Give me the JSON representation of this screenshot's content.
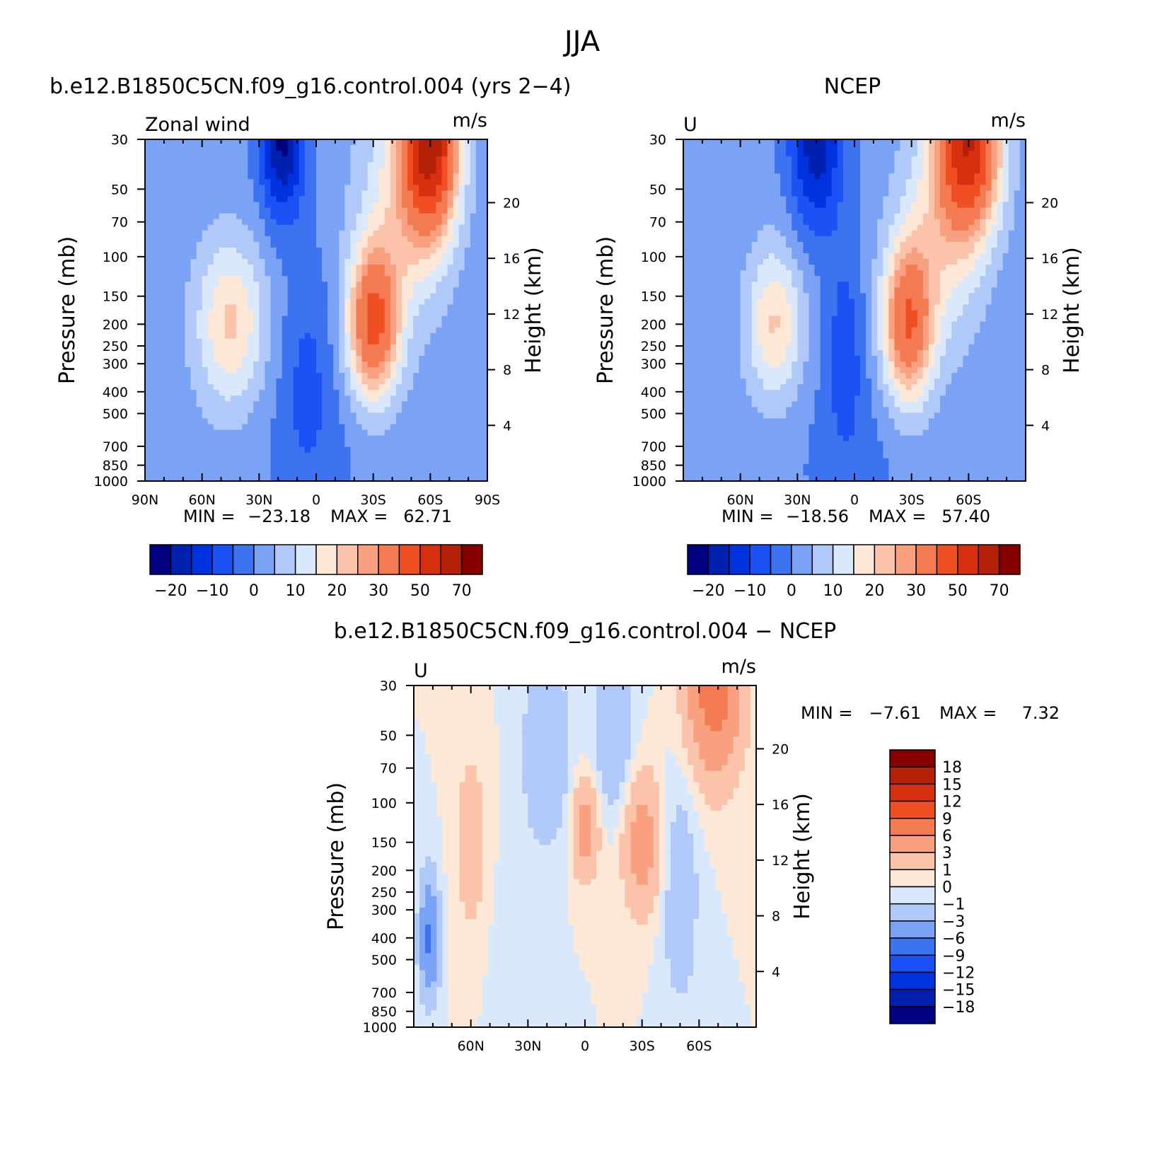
{
  "figure": {
    "title": "JJA"
  },
  "chart_data": [
    {
      "type": "heatmap",
      "title": "b.e12.B1850C5CN.f09_g16.control.004 (yrs 2−4)",
      "left_label": "Zonal wind",
      "units": "m/s",
      "ylabel": "Pressure (mb)",
      "y2label": "Height (km)",
      "y_ticks": [
        "30",
        "50",
        "70",
        "100",
        "150",
        "200",
        "250",
        "300",
        "400",
        "500",
        "700",
        "850",
        "1000"
      ],
      "y2_ticks": [
        "20",
        "16",
        "12",
        "8",
        "4"
      ],
      "x_ticks": [
        "90N",
        "60N",
        "30N",
        "0",
        "30S",
        "60S",
        "90S"
      ],
      "min_label": "MIN =",
      "min_value": "−23.18",
      "max_label": "MAX =",
      "max_value": "62.71",
      "colorbar_labels": [
        "−20",
        "−10",
        "0",
        "10",
        "20",
        "30",
        "50",
        "70"
      ],
      "features": [
        {
          "x": -18,
          "p": 30,
          "value": -23.18
        },
        {
          "x": 60,
          "p": 30,
          "value": 62.71
        },
        {
          "x": -45,
          "p": 200,
          "value": 21
        },
        {
          "x": 25,
          "p": 200,
          "value": 45
        }
      ]
    },
    {
      "type": "heatmap",
      "title": "NCEP",
      "left_label": "U",
      "units": "m/s",
      "ylabel": "Pressure (mb)",
      "y2label": "Height (km)",
      "y_ticks": [
        "30",
        "50",
        "70",
        "100",
        "150",
        "200",
        "250",
        "300",
        "400",
        "500",
        "700",
        "850",
        "1000"
      ],
      "y2_ticks": [
        "20",
        "16",
        "12",
        "8",
        "4"
      ],
      "x_ticks": [
        "60N",
        "30N",
        "0",
        "30S",
        "60S"
      ],
      "min_label": "MIN =",
      "min_value": "−18.56",
      "max_label": "MAX =",
      "max_value": "57.40",
      "colorbar_labels": [
        "−20",
        "−10",
        "0",
        "10",
        "20",
        "30",
        "50",
        "70"
      ],
      "features": [
        {
          "x": -18,
          "p": 30,
          "value": -18.56
        },
        {
          "x": 60,
          "p": 30,
          "value": 57.4
        },
        {
          "x": -42,
          "p": 200,
          "value": 21
        },
        {
          "x": 28,
          "p": 200,
          "value": 40
        }
      ]
    },
    {
      "type": "heatmap",
      "title": "b.e12.B1850C5CN.f09_g16.control.004 − NCEP",
      "left_label": "U",
      "units": "m/s",
      "ylabel": "Pressure (mb)",
      "y2label": "Height (km)",
      "y_ticks": [
        "30",
        "50",
        "70",
        "100",
        "150",
        "200",
        "250",
        "300",
        "400",
        "500",
        "700",
        "850",
        "1000"
      ],
      "y2_ticks": [
        "20",
        "16",
        "12",
        "8",
        "4"
      ],
      "x_ticks": [
        "60N",
        "30N",
        "0",
        "30S",
        "60S"
      ],
      "min_label": "MIN =",
      "min_value": "−7.61",
      "max_label": "MAX =",
      "max_value": "7.32",
      "colorbar_labels": [
        "18",
        "15",
        "12",
        "9",
        "6",
        "3",
        "1",
        "0",
        "−1",
        "−3",
        "−6",
        "−9",
        "−12",
        "−15",
        "−18"
      ],
      "features": [
        {
          "x": 68,
          "p": 30,
          "value": 7.32
        },
        {
          "x": 30,
          "p": 150,
          "value": 4
        },
        {
          "x": 0,
          "p": 130,
          "value": 4
        },
        {
          "x": -60,
          "p": 150,
          "value": 2
        },
        {
          "x": -82,
          "p": 400,
          "value": -7.61
        }
      ]
    }
  ],
  "colors": {
    "main_scale": [
      "#000080",
      "#0020b0",
      "#0033e0",
      "#1a52f5",
      "#3d72f0",
      "#7ba3f5",
      "#b0c9f8",
      "#d9e8fb",
      "#fde8d8",
      "#fbc4aa",
      "#f8a080",
      "#f47a52",
      "#f04e23",
      "#d63010",
      "#b52008",
      "#870000"
    ],
    "diff_scale": [
      "#870000",
      "#b52008",
      "#d63010",
      "#f04e23",
      "#f47a52",
      "#f8a080",
      "#fbc4aa",
      "#fde8d8",
      "#d9e8fb",
      "#b0c9f8",
      "#7ba3f5",
      "#3d72f0",
      "#1a52f5",
      "#0033e0",
      "#0020b0",
      "#000080"
    ]
  }
}
